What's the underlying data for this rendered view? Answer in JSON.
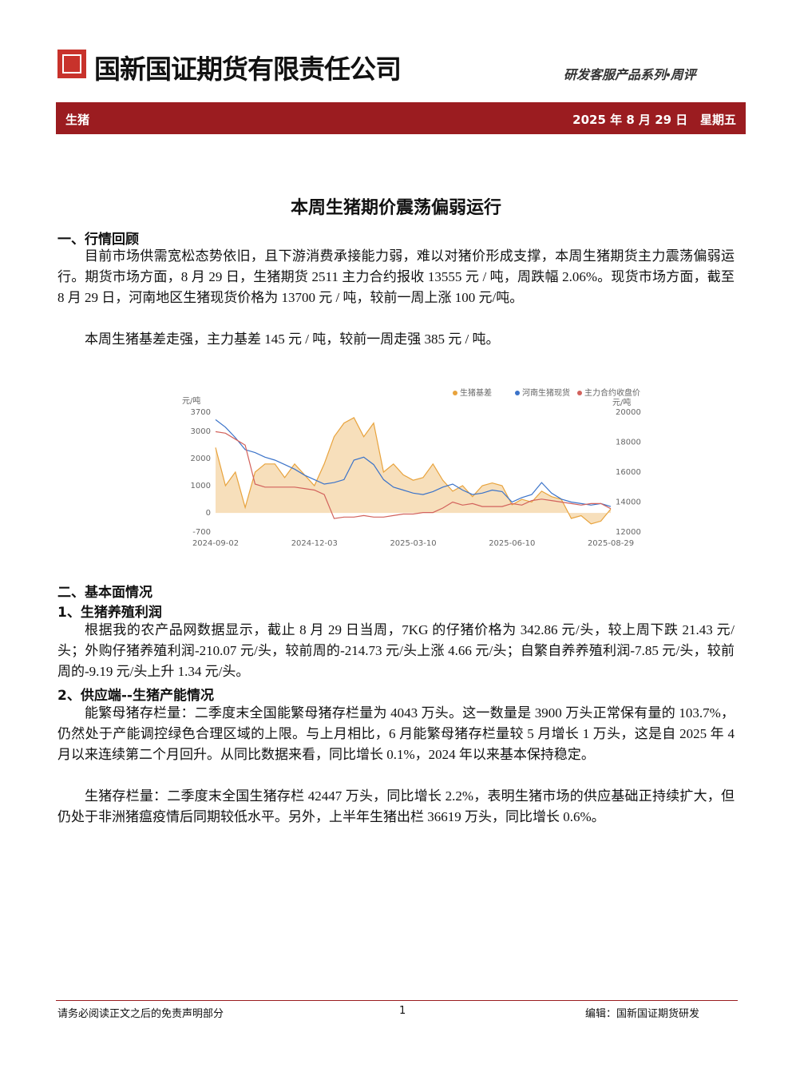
{
  "header": {
    "company": "国新国证期货有限责任公司",
    "series": "研发客服产品系列•周评",
    "category": "生猪",
    "date": "2025 年 8 月 29 日",
    "weekday": "星期五"
  },
  "title": "本周生猪期价震荡偏弱运行",
  "sections": [
    {
      "heading": "一、行情回顾",
      "paragraphs": [
        "目前市场供需宽松态势依旧，且下游消费承接能力弱，难以对猪价形成支撑，本周生猪期货主力震荡偏弱运行。期货市场方面，8 月 29 日，生猪期货 2511 主力合约报收 13555 元 / 吨，周跌幅 2.06%。现货市场方面，截至 8 月 29 日，河南地区生猪现货价格为 13700 元 / 吨，较前一周上涨 100 元/吨。",
        "本周生猪基差走强，主力基差 145 元 / 吨，较前一周走强 385 元 / 吨。"
      ]
    },
    {
      "heading": "二、基本面情况",
      "subsections": [
        {
          "heading": "1、生猪养殖利润",
          "paragraphs": [
            "根据我的农产品网数据显示，截止 8 月 29 日当周，7KG 的仔猪价格为 342.86 元/头，较上周下跌 21.43 元/头；外购仔猪养殖利润-210.07 元/头，较前周的-214.73 元/头上涨 4.66 元/头；自繁自养养殖利润-7.85 元/头，较前周的-9.19 元/头上升 1.34 元/头。"
          ]
        },
        {
          "heading": "2、供应端--生猪产能情况",
          "paragraphs": [
            "能繁母猪存栏量：二季度末全国能繁母猪存栏量为 4043 万头。这一数量是 3900 万头正常保有量的 103.7%，仍然处于产能调控绿色合理区域的上限。与上月相比，6 月能繁母猪存栏量较 5 月增长 1 万头，这是自 2025 年 4 月以来连续第二个月回升。从同比数据来看，同比增长 0.1%，2024 年以来基本保持稳定。",
            "生猪存栏量：二季度末全国生猪存栏 42447 万头，同比增长 2.2%，表明生猪市场的供应基础正持续扩大，但仍处于非洲猪瘟疫情后同期较低水平。另外，上半年生猪出栏 36619 万头，同比增长 0.6%。"
          ]
        }
      ]
    }
  ],
  "chart_data": {
    "type": "line",
    "ylabel": "元/吨",
    "y2label": "元/吨",
    "categories": [
      "2024-09-02",
      null,
      null,
      null,
      null,
      null,
      null,
      null,
      null,
      null,
      "2024-12-03",
      null,
      null,
      null,
      null,
      null,
      null,
      null,
      null,
      null,
      "2025-03-10",
      null,
      null,
      null,
      null,
      null,
      null,
      null,
      null,
      null,
      "2025-06-10",
      null,
      null,
      null,
      null,
      null,
      null,
      null,
      null,
      null,
      "2025-08-29"
    ],
    "ylim": [
      -700,
      3700
    ],
    "yticks": [
      -700,
      0,
      1000,
      2000,
      3000,
      3700
    ],
    "y2lim": [
      12000,
      20000
    ],
    "y2ticks": [
      12000,
      14000,
      16000,
      18000,
      20000
    ],
    "series": [
      {
        "name": "生猪基差",
        "color": "#e8a33d",
        "area": true,
        "values": [
          2400,
          1000,
          1500,
          200,
          1500,
          1800,
          1800,
          1300,
          1800,
          1400,
          1000,
          1800,
          2800,
          3300,
          3500,
          2800,
          3300,
          1500,
          1800,
          1400,
          1200,
          1300,
          1800,
          1200,
          800,
          1000,
          600,
          1000,
          1100,
          1000,
          300,
          500,
          400,
          800,
          600,
          500,
          -200,
          -100,
          -400,
          -300,
          145
        ]
      },
      {
        "name": "河南生猪现货",
        "color": "#3b73c9",
        "axis": "y2",
        "values": [
          19500,
          19000,
          18300,
          17500,
          17300,
          17000,
          16800,
          16500,
          16200,
          15800,
          15500,
          15200,
          15300,
          15500,
          16800,
          17000,
          16500,
          15500,
          15000,
          14800,
          14600,
          14500,
          14700,
          15000,
          15200,
          14800,
          14500,
          14600,
          14800,
          14700,
          14000,
          14300,
          14500,
          15300,
          14600,
          14200,
          14000,
          13900,
          13800,
          13900,
          13700
        ]
      },
      {
        "name": "主力合约收盘价",
        "color": "#d2625c",
        "axis": "y2",
        "values": [
          18700,
          18600,
          18200,
          17800,
          15200,
          15000,
          15000,
          15000,
          15000,
          14900,
          14800,
          14500,
          12900,
          13000,
          13000,
          13100,
          13000,
          13000,
          13100,
          13200,
          13200,
          13300,
          13300,
          13600,
          14000,
          13800,
          13900,
          13700,
          13700,
          13700,
          13900,
          13800,
          14100,
          14200,
          14100,
          14000,
          13900,
          13800,
          13900,
          13900,
          13555
        ]
      }
    ]
  },
  "footer": {
    "disclaimer": "请务必阅读正文之后的免责声明部分",
    "page": "1",
    "editor": "编辑：国新国证期货研发"
  }
}
